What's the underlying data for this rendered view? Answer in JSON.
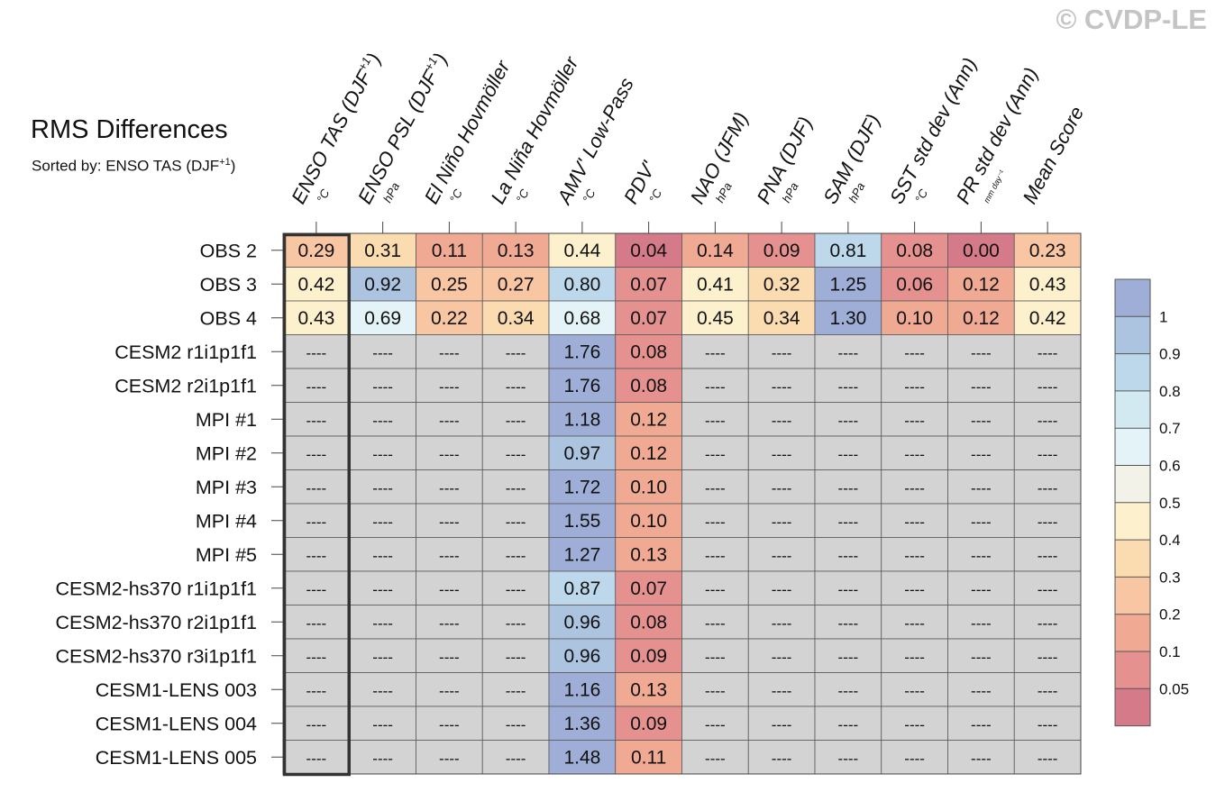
{
  "title": "RMS Differences",
  "subtitle": {
    "text": "Sorted by: ENSO TAS (DJF",
    "sup": "+1",
    "close": ")"
  },
  "watermark": "© CVDP-LE",
  "missing_label": "----",
  "chart_data": {
    "type": "heatmap",
    "columns": [
      {
        "label": "ENSO TAS (DJF",
        "sup": "+1",
        "tail": ")",
        "unit": "°C"
      },
      {
        "label": "ENSO PSL (DJF",
        "sup": "+1",
        "tail": ")",
        "unit": "hPa"
      },
      {
        "label": "El Niño Hovmöller",
        "sup": "",
        "tail": "",
        "unit": "°C"
      },
      {
        "label": "La Niña Hovmöller",
        "sup": "",
        "tail": "",
        "unit": "°C"
      },
      {
        "label": "AMV' Low-Pass",
        "sup": "",
        "tail": "",
        "unit": "°C"
      },
      {
        "label": "PDV'",
        "sup": "",
        "tail": "",
        "unit": "°C"
      },
      {
        "label": "NAO (JFM)",
        "sup": "",
        "tail": "",
        "unit": "hPa"
      },
      {
        "label": "PNA (DJF)",
        "sup": "",
        "tail": "",
        "unit": "hPa"
      },
      {
        "label": "SAM (DJF)",
        "sup": "",
        "tail": "",
        "unit": "hPa"
      },
      {
        "label": "SST std dev (Ann)",
        "sup": "",
        "tail": "",
        "unit": "°C"
      },
      {
        "label": "PR std dev (Ann)",
        "sup": "",
        "tail": "",
        "unit": "mm day⁻¹"
      },
      {
        "label": "Mean Score",
        "sup": "",
        "tail": "",
        "unit": ""
      }
    ],
    "rows": [
      {
        "name": "OBS 2",
        "values": [
          0.29,
          0.31,
          0.11,
          0.13,
          0.44,
          0.04,
          0.14,
          0.09,
          0.81,
          0.08,
          0.0,
          0.23
        ]
      },
      {
        "name": "OBS 3",
        "values": [
          0.42,
          0.92,
          0.25,
          0.27,
          0.8,
          0.07,
          0.41,
          0.32,
          1.25,
          0.06,
          0.12,
          0.43
        ]
      },
      {
        "name": "OBS 4",
        "values": [
          0.43,
          0.69,
          0.22,
          0.34,
          0.68,
          0.07,
          0.45,
          0.34,
          1.3,
          0.1,
          0.12,
          0.42
        ]
      },
      {
        "name": "CESM2 r1i1p1f1",
        "values": [
          null,
          null,
          null,
          null,
          1.76,
          0.08,
          null,
          null,
          null,
          null,
          null,
          null
        ]
      },
      {
        "name": "CESM2 r2i1p1f1",
        "values": [
          null,
          null,
          null,
          null,
          1.76,
          0.08,
          null,
          null,
          null,
          null,
          null,
          null
        ]
      },
      {
        "name": "MPI #1",
        "values": [
          null,
          null,
          null,
          null,
          1.18,
          0.12,
          null,
          null,
          null,
          null,
          null,
          null
        ]
      },
      {
        "name": "MPI #2",
        "values": [
          null,
          null,
          null,
          null,
          0.97,
          0.12,
          null,
          null,
          null,
          null,
          null,
          null
        ]
      },
      {
        "name": "MPI #3",
        "values": [
          null,
          null,
          null,
          null,
          1.72,
          0.1,
          null,
          null,
          null,
          null,
          null,
          null
        ]
      },
      {
        "name": "MPI #4",
        "values": [
          null,
          null,
          null,
          null,
          1.55,
          0.1,
          null,
          null,
          null,
          null,
          null,
          null
        ]
      },
      {
        "name": "MPI #5",
        "values": [
          null,
          null,
          null,
          null,
          1.27,
          0.13,
          null,
          null,
          null,
          null,
          null,
          null
        ]
      },
      {
        "name": "CESM2-hs370 r1i1p1f1",
        "values": [
          null,
          null,
          null,
          null,
          0.87,
          0.07,
          null,
          null,
          null,
          null,
          null,
          null
        ]
      },
      {
        "name": "CESM2-hs370 r2i1p1f1",
        "values": [
          null,
          null,
          null,
          null,
          0.96,
          0.08,
          null,
          null,
          null,
          null,
          null,
          null
        ]
      },
      {
        "name": "CESM2-hs370 r3i1p1f1",
        "values": [
          null,
          null,
          null,
          null,
          0.96,
          0.09,
          null,
          null,
          null,
          null,
          null,
          null
        ]
      },
      {
        "name": "CESM1-LENS 003",
        "values": [
          null,
          null,
          null,
          null,
          1.16,
          0.13,
          null,
          null,
          null,
          null,
          null,
          null
        ]
      },
      {
        "name": "CESM1-LENS 004",
        "values": [
          null,
          null,
          null,
          null,
          1.36,
          0.09,
          null,
          null,
          null,
          null,
          null,
          null
        ]
      },
      {
        "name": "CESM1-LENS 005",
        "values": [
          null,
          null,
          null,
          null,
          1.48,
          0.11,
          null,
          null,
          null,
          null,
          null,
          null
        ]
      }
    ],
    "sorted_column": "ENSO TAS (DJF+1)",
    "missing_color": "#d3d3d3",
    "colorbar": {
      "ticks": [
        "1",
        "0.9",
        "0.8",
        "0.7",
        "0.6",
        "0.5",
        "0.4",
        "0.3",
        "0.2",
        "0.1",
        "0.05"
      ],
      "colors_top_to_bottom": [
        "#9eaed6",
        "#acc4e0",
        "#bcd8ea",
        "#d2e9f1",
        "#e4f3f7",
        "#f2f2e8",
        "#fdf0cc",
        "#fbdcb0",
        "#f8c6a3",
        "#f0aa94",
        "#e49190",
        "#d47a88"
      ]
    }
  }
}
